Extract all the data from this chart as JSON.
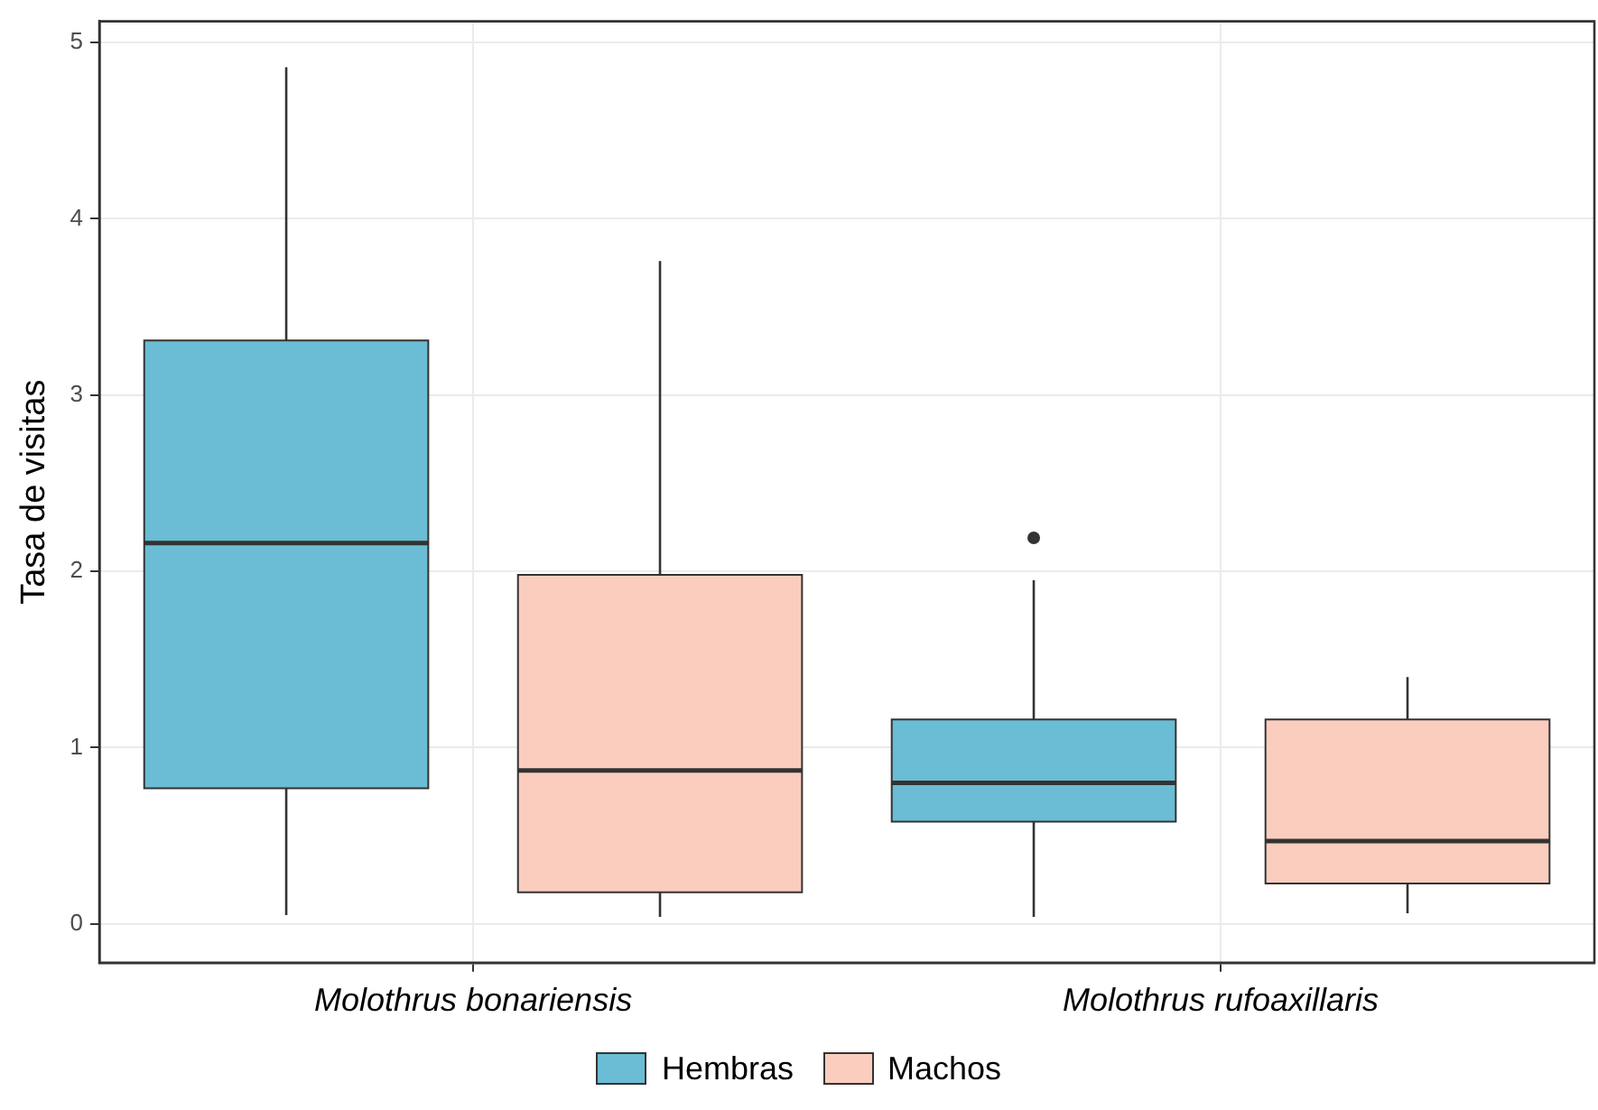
{
  "chart_data": {
    "type": "box",
    "ylabel": "Tasa de visitas",
    "categories": [
      "Molothrus bonariensis",
      "Molothrus rufoaxillaris"
    ],
    "series": [
      {
        "name": "Hembras",
        "color": "#6abdd4",
        "boxes": [
          {
            "low": 0.05,
            "q1": 0.77,
            "median": 2.16,
            "q3": 3.31,
            "high": 4.86
          },
          {
            "low": 0.04,
            "q1": 0.58,
            "median": 0.8,
            "q3": 1.16,
            "high": 1.95,
            "outliers": [
              2.19
            ]
          }
        ]
      },
      {
        "name": "Machos",
        "color": "#fbcdbf",
        "boxes": [
          {
            "low": 0.04,
            "q1": 0.18,
            "median": 0.87,
            "q3": 1.98,
            "high": 3.76
          },
          {
            "low": 0.06,
            "q1": 0.23,
            "median": 0.47,
            "q3": 1.16,
            "high": 1.4
          }
        ]
      }
    ],
    "ylim": [
      -0.22,
      5.12
    ],
    "yticks": [
      0,
      1,
      2,
      3,
      4,
      5
    ],
    "grid": true,
    "legend": "bottom"
  }
}
